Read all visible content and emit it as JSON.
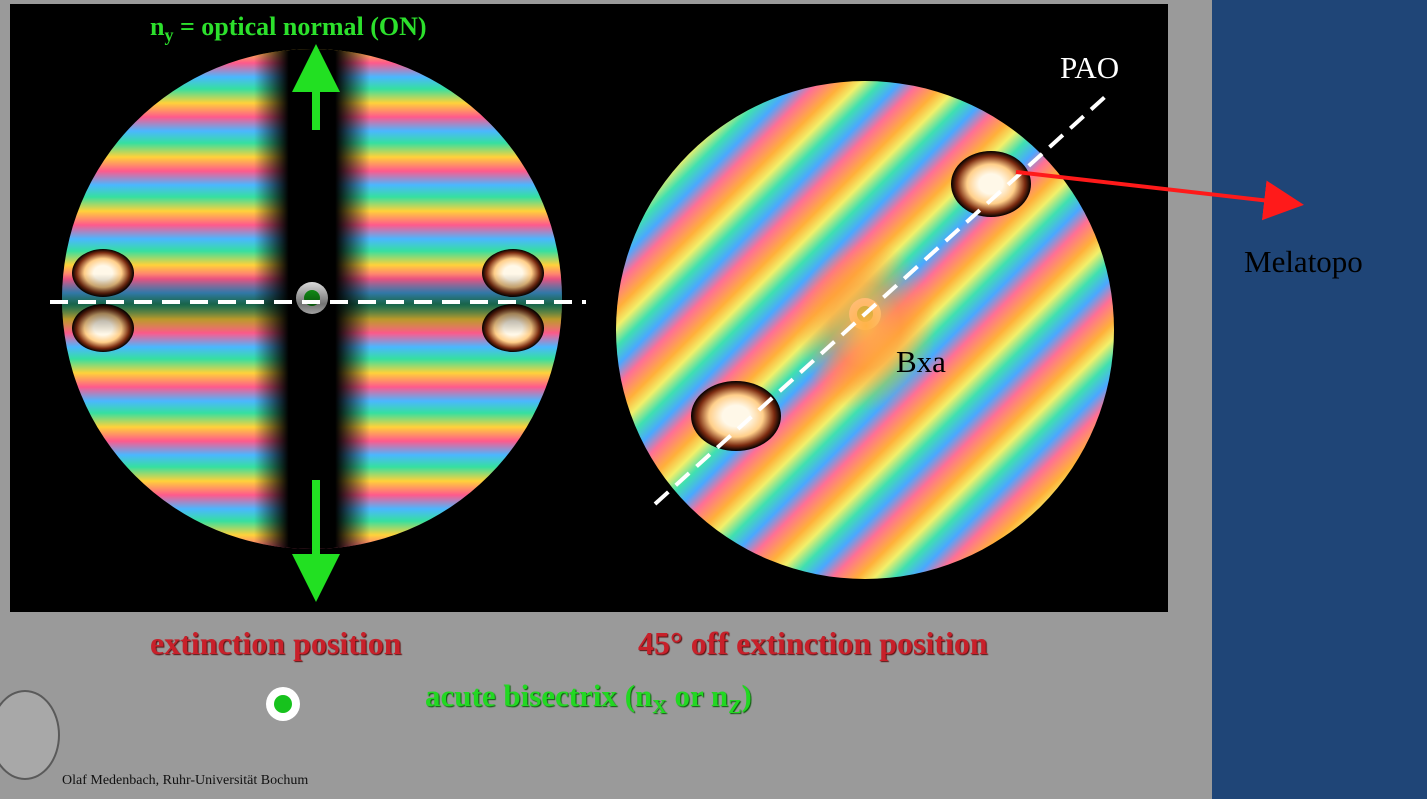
{
  "labels": {
    "ny_prefix": "n",
    "ny_sub": "y",
    "ny_rest": " = optical normal (ON)",
    "pao": "PAO",
    "bxa": "Bxa",
    "melatopo": "Melatopo",
    "extinction": "extinction position",
    "off_extinction": "45° off extinction position",
    "bisectrix_prefix": "acute bisectrix (n",
    "bisectrix_sub_x": "X",
    "bisectrix_mid": " or n",
    "bisectrix_sub_z": "Z",
    "bisectrix_end": ")",
    "credit": "Olaf Medenbach, Ruhr-Universität Bochum"
  },
  "colors": {
    "slide_background": "#9a9a9a",
    "side_panel": "#1f4577",
    "green_marker": "#17c21d",
    "arrow_red": "#ff1a1a",
    "title_red": "#c8202a"
  },
  "icons": {
    "legend_marker": "green-dot-icon",
    "seal": "university-seal-icon"
  }
}
